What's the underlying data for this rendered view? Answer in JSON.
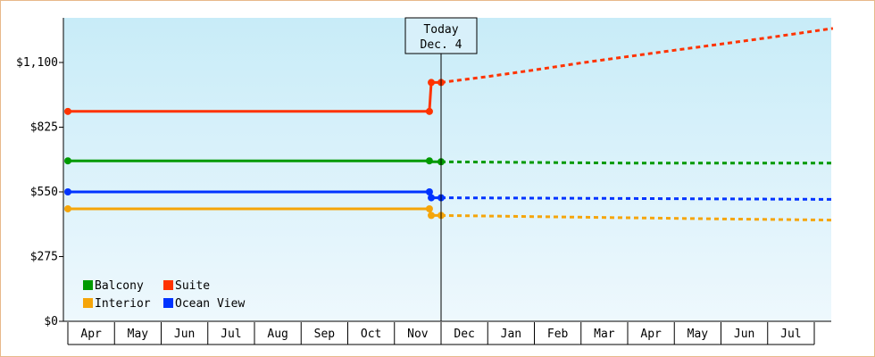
{
  "chart_data": {
    "type": "line",
    "title": "",
    "xlabel": "",
    "ylabel": "",
    "ylim": [
      0,
      1100
    ],
    "yticks": [
      {
        "value": 0,
        "label": "$0"
      },
      {
        "value": 275,
        "label": "$275"
      },
      {
        "value": 550,
        "label": "$550"
      },
      {
        "value": 825,
        "label": "$825"
      },
      {
        "value": 1100,
        "label": "$1,100"
      }
    ],
    "x_months": [
      "Apr",
      "May",
      "Jun",
      "Jul",
      "Aug",
      "Sep",
      "Oct",
      "Nov",
      "Dec",
      "Jan",
      "Feb",
      "Mar",
      "Apr",
      "May",
      "Jun",
      "Jul"
    ],
    "today": {
      "label_line1": "Today",
      "label_line2": "Dec. 4",
      "x": 8.0
    },
    "series": [
      {
        "name": "Balcony",
        "color": "#009a00",
        "history": [
          [
            0,
            682
          ],
          [
            7.75,
            682
          ],
          [
            7.79,
            678
          ],
          [
            8.0,
            678
          ]
        ],
        "forecast": [
          [
            8.0,
            678
          ],
          [
            12.2,
            672
          ],
          [
            16.4,
            672
          ]
        ]
      },
      {
        "name": "Suite",
        "color": "#ff3300",
        "history": [
          [
            0,
            892
          ],
          [
            7.75,
            892
          ],
          [
            7.79,
            1015
          ],
          [
            8.0,
            1015
          ]
        ],
        "forecast": [
          [
            8.0,
            1015
          ],
          [
            9.0,
            1040
          ],
          [
            10.0,
            1068
          ],
          [
            11.0,
            1098
          ],
          [
            12.0,
            1125
          ],
          [
            13.0,
            1152
          ],
          [
            14.0,
            1178
          ],
          [
            15.0,
            1205
          ],
          [
            16.4,
            1245
          ]
        ]
      },
      {
        "name": "Interior",
        "color": "#f5a50a",
        "history": [
          [
            0,
            478
          ],
          [
            7.75,
            478
          ],
          [
            7.79,
            450
          ],
          [
            8.0,
            450
          ]
        ],
        "forecast": [
          [
            8.0,
            450
          ],
          [
            10.0,
            445
          ],
          [
            12.0,
            440
          ],
          [
            14.0,
            435
          ],
          [
            16.4,
            430
          ]
        ]
      },
      {
        "name": "Ocean View",
        "color": "#0033ff",
        "history": [
          [
            0,
            550
          ],
          [
            7.75,
            550
          ],
          [
            7.79,
            525
          ],
          [
            8.0,
            525
          ]
        ],
        "forecast": [
          [
            8.0,
            525
          ],
          [
            12.0,
            522
          ],
          [
            16.4,
            518
          ]
        ]
      }
    ],
    "markers": [
      {
        "series": 0,
        "x": 0,
        "y": 682
      },
      {
        "series": 0,
        "x": 7.75,
        "y": 682
      },
      {
        "series": 0,
        "x": 8.0,
        "y": 678
      },
      {
        "series": 1,
        "x": 0,
        "y": 892
      },
      {
        "series": 1,
        "x": 7.75,
        "y": 892
      },
      {
        "series": 1,
        "x": 7.79,
        "y": 1015
      },
      {
        "series": 1,
        "x": 8.0,
        "y": 1015
      },
      {
        "series": 2,
        "x": 0,
        "y": 478
      },
      {
        "series": 2,
        "x": 7.75,
        "y": 478
      },
      {
        "series": 2,
        "x": 7.79,
        "y": 450
      },
      {
        "series": 2,
        "x": 8.0,
        "y": 450
      },
      {
        "series": 3,
        "x": 0,
        "y": 550
      },
      {
        "series": 3,
        "x": 7.75,
        "y": 550
      },
      {
        "series": 3,
        "x": 7.79,
        "y": 525
      },
      {
        "series": 3,
        "x": 8.0,
        "y": 525
      }
    ],
    "legend": {
      "placement": "bottom-left",
      "entries": [
        {
          "label": "Balcony",
          "color": "#009a00"
        },
        {
          "label": "Suite",
          "color": "#ff3300"
        },
        {
          "label": "Interior",
          "color": "#f5a50a"
        },
        {
          "label": "Ocean View",
          "color": "#0033ff"
        }
      ]
    },
    "background_gradient": [
      "#c8ecf8",
      "#eef8fd"
    ]
  }
}
